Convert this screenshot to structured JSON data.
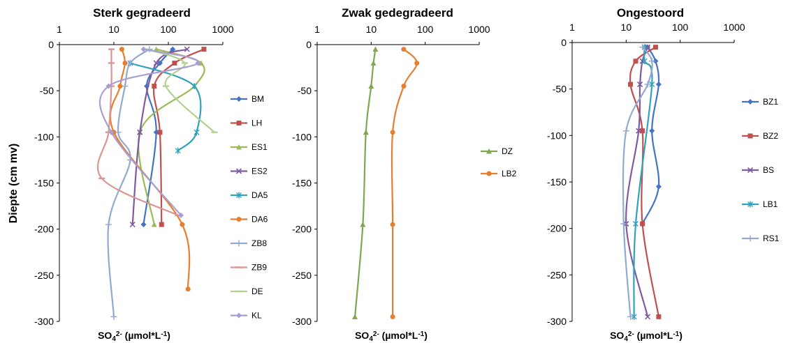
{
  "ylabel": "Diepte (cm mv)",
  "chart_data": [
    {
      "type": "line",
      "title": "Sterk gegradeerd",
      "xlabel_main": "SO",
      "xlabel_sub": "4",
      "xlabel_sup": "2-",
      "xlabel_rest": " (µmol*L",
      "xlabel_sup2": "-1",
      "xlabel_end": ")",
      "xscale": "log",
      "xlim": [
        1,
        1000
      ],
      "ylim": [
        -300,
        0
      ],
      "xticks": [
        "1",
        "10",
        "100",
        "1000"
      ],
      "yticks": [
        "0",
        "-50",
        "-100",
        "-150",
        "-200",
        "-250",
        "-300"
      ],
      "legend_position": "right",
      "series": [
        {
          "name": "BM",
          "color": "#4472C4",
          "marker": "diamond",
          "points": [
            [
              120,
              -5
            ],
            [
              70,
              -20
            ],
            [
              40,
              -45
            ],
            [
              60,
              -95
            ],
            [
              35,
              -195
            ]
          ]
        },
        {
          "name": "LH",
          "color": "#C0504D",
          "marker": "square",
          "points": [
            [
              450,
              -5
            ],
            [
              130,
              -20
            ],
            [
              55,
              -45
            ],
            [
              70,
              -95
            ],
            [
              75,
              -195
            ]
          ]
        },
        {
          "name": "ES1",
          "color": "#9BBB59",
          "marker": "triangle",
          "points": [
            [
              60,
              -5
            ],
            [
              400,
              -20
            ],
            [
              300,
              -45
            ],
            [
              30,
              -95
            ],
            [
              55,
              -195
            ]
          ]
        },
        {
          "name": "ES2",
          "color": "#7F5A9E",
          "marker": "x",
          "points": [
            [
              220,
              -5
            ],
            [
              60,
              -20
            ],
            [
              30,
              -95
            ],
            [
              22,
              -195
            ]
          ]
        },
        {
          "name": "DA5",
          "color": "#31A2B8",
          "marker": "star",
          "points": [
            [
              20,
              -20
            ],
            [
              300,
              -45
            ],
            [
              330,
              -95
            ],
            [
              150,
              -115
            ]
          ]
        },
        {
          "name": "DA6",
          "color": "#E67E2E",
          "marker": "circle",
          "points": [
            [
              14,
              -5
            ],
            [
              16,
              -20
            ],
            [
              13,
              -45
            ],
            [
              10,
              -95
            ],
            [
              180,
              -195
            ],
            [
              230,
              -265
            ]
          ]
        },
        {
          "name": "ZB8",
          "color": "#93A9CF",
          "marker": "plus",
          "points": [
            [
              45,
              -5
            ],
            [
              20,
              -20
            ],
            [
              16,
              -45
            ],
            [
              12,
              -95
            ],
            [
              20,
              -125
            ],
            [
              8,
              -195
            ],
            [
              10,
              -295
            ]
          ]
        },
        {
          "name": "ZB9",
          "color": "#D99694",
          "marker": "dash",
          "points": [
            [
              9,
              -5
            ],
            [
              9,
              -20
            ],
            [
              9,
              -45
            ],
            [
              8,
              -95
            ],
            [
              6,
              -145
            ],
            [
              150,
              -185
            ]
          ]
        },
        {
          "name": "DE",
          "color": "#B4D191",
          "marker": "dash",
          "points": [
            [
              40,
              -5
            ],
            [
              200,
              -20
            ],
            [
              90,
              -45
            ],
            [
              700,
              -95
            ]
          ]
        },
        {
          "name": "KL",
          "color": "#A99ED2",
          "marker": "diamond",
          "points": [
            [
              35,
              -5
            ],
            [
              350,
              -20
            ],
            [
              8,
              -45
            ],
            [
              9,
              -95
            ],
            [
              170,
              -185
            ]
          ]
        }
      ]
    },
    {
      "type": "line",
      "title": "Zwak gedegradeerd",
      "xlabel_main": "SO",
      "xlabel_sub": "4",
      "xlabel_sup": "2-",
      "xlabel_rest": " (µmol*L",
      "xlabel_sup2": "-1",
      "xlabel_end": ")",
      "xscale": "log",
      "xlim": [
        1,
        1000
      ],
      "ylim": [
        -300,
        0
      ],
      "xticks": [
        "1",
        "10",
        "100",
        "1000"
      ],
      "yticks": [
        "0",
        "-50",
        "-100",
        "-150",
        "-200",
        "-250",
        "-300"
      ],
      "legend_position": "right",
      "series": [
        {
          "name": "DZ",
          "color": "#7FA650",
          "marker": "triangle",
          "points": [
            [
              12,
              -5
            ],
            [
              11,
              -20
            ],
            [
              10,
              -45
            ],
            [
              8,
              -95
            ],
            [
              7,
              -195
            ],
            [
              5,
              -295
            ]
          ]
        },
        {
          "name": "LB2",
          "color": "#E67E2E",
          "marker": "circle",
          "points": [
            [
              40,
              -5
            ],
            [
              70,
              -20
            ],
            [
              40,
              -45
            ],
            [
              25,
              -95
            ],
            [
              25,
              -195
            ],
            [
              25,
              -295
            ]
          ]
        }
      ]
    },
    {
      "type": "line",
      "title": "Ongestoord",
      "xlabel_main": "SO",
      "xlabel_sub": "4",
      "xlabel_sup": "2-",
      "xlabel_rest": " (µmol*L",
      "xlabel_sup2": "-1",
      "xlabel_end": ")",
      "xscale": "log",
      "xlim": [
        1,
        1000
      ],
      "ylim": [
        -300,
        0
      ],
      "xticks": [
        "1",
        "10",
        "100",
        "1000"
      ],
      "yticks": [
        "0",
        "-50",
        "-100",
        "-150",
        "-200",
        "-250",
        "-300"
      ],
      "legend_position": "right",
      "series": [
        {
          "name": "BZ1",
          "color": "#4472C4",
          "marker": "diamond",
          "points": [
            [
              25,
              -5
            ],
            [
              35,
              -20
            ],
            [
              40,
              -45
            ],
            [
              30,
              -95
            ],
            [
              40,
              -155
            ],
            [
              20,
              -195
            ]
          ]
        },
        {
          "name": "BZ2",
          "color": "#C0504D",
          "marker": "square",
          "points": [
            [
              35,
              -5
            ],
            [
              15,
              -20
            ],
            [
              12,
              -45
            ],
            [
              20,
              -95
            ],
            [
              20,
              -195
            ],
            [
              40,
              -295
            ]
          ]
        },
        {
          "name": "BS",
          "color": "#7F5A9E",
          "marker": "x",
          "points": [
            [
              25,
              -5
            ],
            [
              20,
              -20
            ],
            [
              18,
              -45
            ],
            [
              17,
              -95
            ],
            [
              10,
              -195
            ],
            [
              25,
              -295
            ]
          ]
        },
        {
          "name": "LB1",
          "color": "#31A2B8",
          "marker": "star",
          "points": [
            [
              22,
              -5
            ],
            [
              22,
              -20
            ],
            [
              30,
              -45
            ],
            [
              15,
              -195
            ],
            [
              14,
              -295
            ]
          ]
        },
        {
          "name": "RS1",
          "color": "#93A9CF",
          "marker": "plus",
          "points": [
            [
              20,
              -5
            ],
            [
              30,
              -20
            ],
            [
              25,
              -45
            ],
            [
              10,
              -95
            ],
            [
              9,
              -195
            ],
            [
              12,
              -295
            ]
          ]
        }
      ]
    }
  ]
}
